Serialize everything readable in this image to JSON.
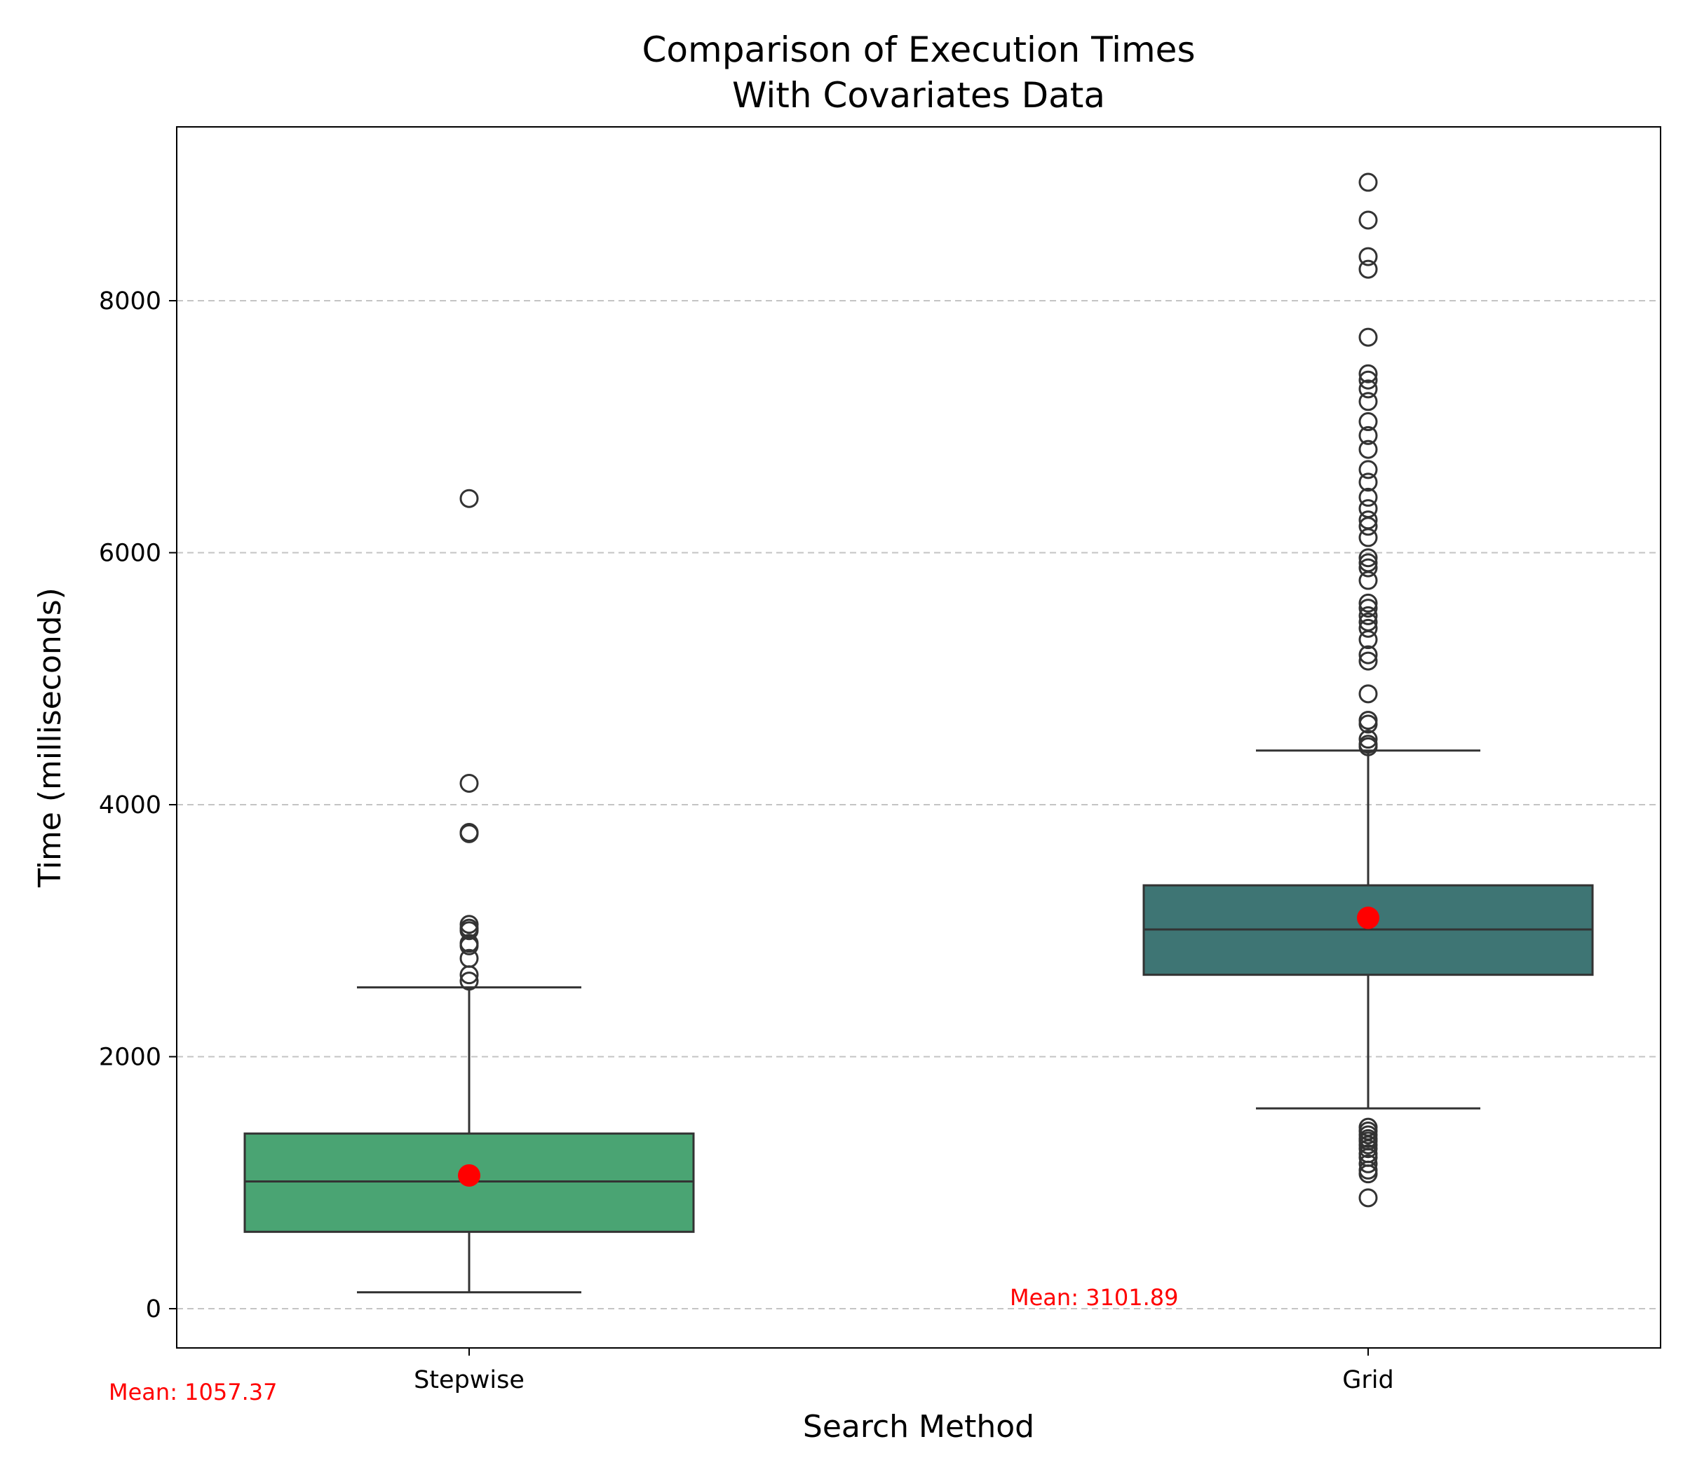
{
  "chart_data": {
    "type": "box",
    "title_lines": [
      "Comparison of Execution Times",
      "With Covariates Data"
    ],
    "xlabel": "Search Method",
    "ylabel": "Time (milliseconds)",
    "ylim": [
      -300,
      9400
    ],
    "yticks": [
      0,
      2000,
      4000,
      6000,
      8000
    ],
    "grid": "horizontal dashed",
    "mean_color": "#ff0000",
    "categories": [
      "Stepwise",
      "Grid"
    ],
    "boxes": [
      {
        "name": "Stepwise",
        "color": "#4aa473",
        "q1": 610,
        "median": 1010,
        "q3": 1390,
        "whisker_low": 130,
        "whisker_high": 2550,
        "mean": 1057.37,
        "mean_label": "Mean: 1057.37",
        "outliers": [
          6430,
          4170,
          3780,
          3770,
          3050,
          3020,
          3000,
          2900,
          2880,
          2780,
          2650,
          2600
        ]
      },
      {
        "name": "Grid",
        "color": "#3e7574",
        "q1": 2650,
        "median": 3010,
        "q3": 3360,
        "whisker_low": 1590,
        "whisker_high": 4430,
        "mean": 3101.89,
        "mean_label": "Mean: 3101.89",
        "outliers": [
          8940,
          8640,
          8350,
          8250,
          7710,
          7420,
          7370,
          7300,
          7200,
          7040,
          6930,
          6820,
          6660,
          6560,
          6440,
          6350,
          6260,
          6210,
          6120,
          5960,
          5920,
          5880,
          5780,
          5600,
          5560,
          5500,
          5450,
          5400,
          5310,
          5190,
          5140,
          4880,
          4670,
          4640,
          4520,
          4480,
          4460,
          1440,
          1410,
          1380,
          1350,
          1330,
          1300,
          1270,
          1230,
          1200,
          1150,
          1100,
          1070,
          880
        ]
      }
    ]
  }
}
